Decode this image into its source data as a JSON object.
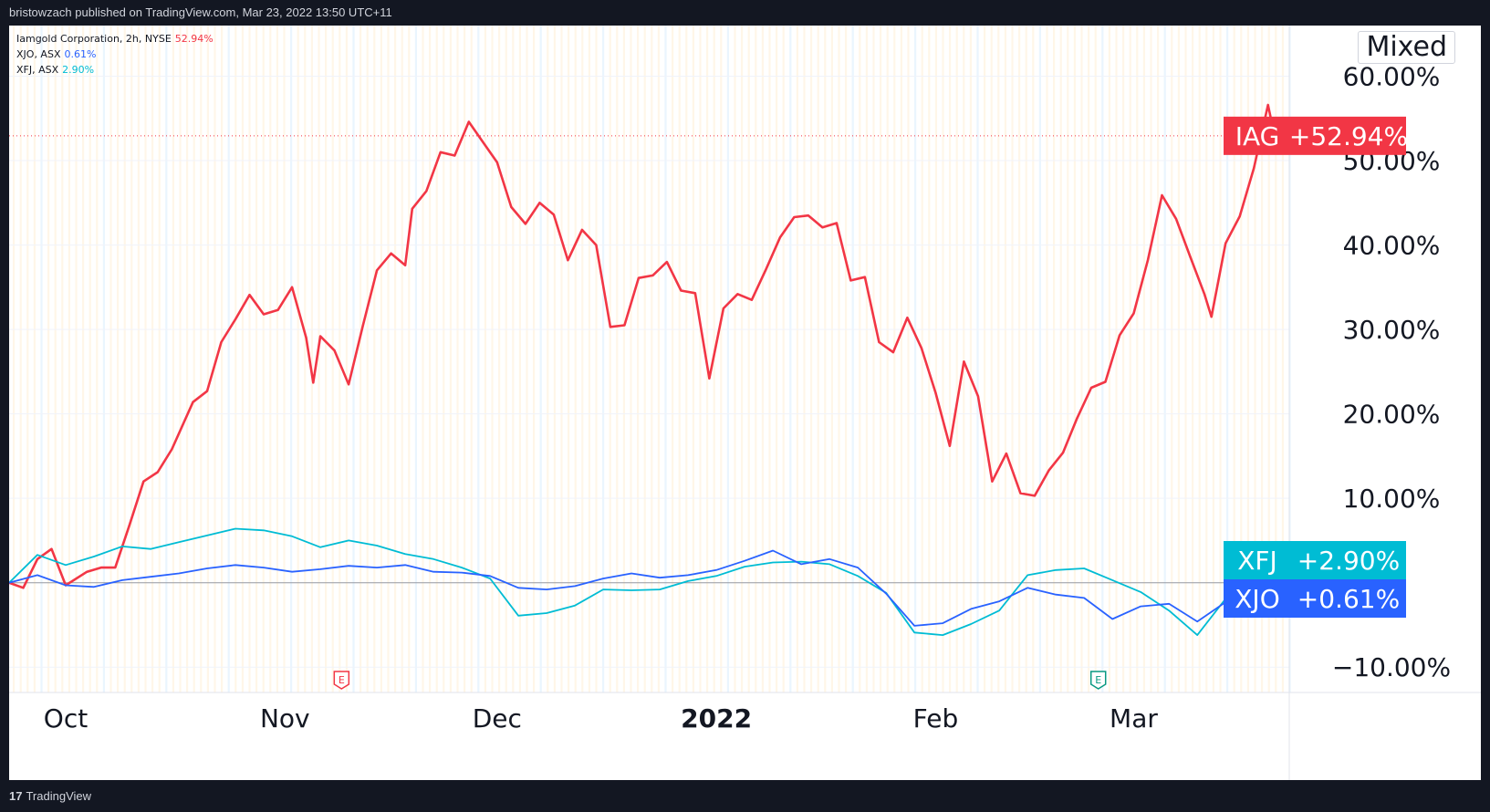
{
  "header": {
    "publish_text": "bristowzach published on TradingView.com, Mar 23, 2022 13:50 UTC+11"
  },
  "footer": {
    "brand": "TradingView",
    "logo_glyph": "17"
  },
  "legend": [
    {
      "label": "Iamgold Corporation, 2h, NYSE",
      "value": "52.94%",
      "color": "#f23645"
    },
    {
      "label": "XJO, ASX",
      "value": "0.61%",
      "color": "#2962ff"
    },
    {
      "label": "XFJ, ASX",
      "value": "2.90%",
      "color": "#00bcd4"
    }
  ],
  "mode_badge": "Mixed",
  "chart_data": {
    "type": "line",
    "y_axis_unit": "%",
    "ylim": [
      -13,
      66
    ],
    "y_ticks": [
      60,
      50,
      40,
      30,
      20,
      10,
      -10
    ],
    "y_tick_labels": [
      "60.00%",
      "50.00%",
      "40.00%",
      "30.00%",
      "20.00%",
      "10.00%",
      "−10.00%"
    ],
    "x_tick_labels": [
      {
        "label": "Oct",
        "date": "2021-10-01",
        "bold": false
      },
      {
        "label": "Nov",
        "date": "2021-11-01",
        "bold": false
      },
      {
        "label": "Dec",
        "date": "2021-12-01",
        "bold": false
      },
      {
        "label": "2022",
        "date": "2022-01-01",
        "bold": true
      },
      {
        "label": "Feb",
        "date": "2022-02-01",
        "bold": false
      },
      {
        "label": "Mar",
        "date": "2022-03-01",
        "bold": false
      }
    ],
    "xlim": [
      "2021-09-23",
      "2022-03-23"
    ],
    "earnings_markers": [
      {
        "date": "2021-11-09",
        "glyph": "E",
        "color": "#f23645"
      },
      {
        "date": "2022-02-24",
        "glyph": "E",
        "color": "#089981"
      }
    ],
    "series": [
      {
        "name": "IAG",
        "badge": "+52.94%",
        "color": "#f23645",
        "last_value": 52.94,
        "points": [
          [
            "2021-09-23",
            0
          ],
          [
            "2021-09-25",
            -0.6
          ],
          [
            "2021-09-27",
            2.8
          ],
          [
            "2021-09-29",
            4
          ],
          [
            "2021-10-01",
            -0.3
          ],
          [
            "2021-10-04",
            1.3
          ],
          [
            "2021-10-06",
            1.8
          ],
          [
            "2021-10-08",
            1.8
          ],
          [
            "2021-10-10",
            6.8
          ],
          [
            "2021-10-12",
            12
          ],
          [
            "2021-10-14",
            13.1
          ],
          [
            "2021-10-16",
            15.8
          ],
          [
            "2021-10-19",
            21.4
          ],
          [
            "2021-10-21",
            22.7
          ],
          [
            "2021-10-23",
            28.5
          ],
          [
            "2021-10-25",
            31.2
          ],
          [
            "2021-10-27",
            34.1
          ],
          [
            "2021-10-29",
            31.8
          ],
          [
            "2021-10-31",
            32.3
          ],
          [
            "2021-11-02",
            35
          ],
          [
            "2021-11-04",
            29
          ],
          [
            "2021-11-05",
            23.7
          ],
          [
            "2021-11-06",
            29.2
          ],
          [
            "2021-11-08",
            27.5
          ],
          [
            "2021-11-10",
            23.5
          ],
          [
            "2021-11-12",
            30.4
          ],
          [
            "2021-11-14",
            37
          ],
          [
            "2021-11-16",
            39
          ],
          [
            "2021-11-18",
            37.6
          ],
          [
            "2021-11-19",
            44.3
          ],
          [
            "2021-11-21",
            46.4
          ],
          [
            "2021-11-23",
            51
          ],
          [
            "2021-11-25",
            50.6
          ],
          [
            "2021-11-27",
            54.6
          ],
          [
            "2021-11-29",
            52.2
          ],
          [
            "2021-12-01",
            49.8
          ],
          [
            "2021-12-03",
            44.5
          ],
          [
            "2021-12-05",
            42.5
          ],
          [
            "2021-12-07",
            45
          ],
          [
            "2021-12-09",
            43.6
          ],
          [
            "2021-12-11",
            38.2
          ],
          [
            "2021-12-13",
            41.8
          ],
          [
            "2021-12-15",
            40
          ],
          [
            "2021-12-17",
            30.3
          ],
          [
            "2021-12-19",
            30.5
          ],
          [
            "2021-12-21",
            36.1
          ],
          [
            "2021-12-23",
            36.4
          ],
          [
            "2021-12-25",
            38
          ],
          [
            "2021-12-27",
            34.6
          ],
          [
            "2021-12-29",
            34.3
          ],
          [
            "2021-12-31",
            24.2
          ],
          [
            "2022-01-02",
            32.5
          ],
          [
            "2022-01-04",
            34.2
          ],
          [
            "2022-01-06",
            33.5
          ],
          [
            "2022-01-08",
            37.1
          ],
          [
            "2022-01-10",
            40.9
          ],
          [
            "2022-01-12",
            43.3
          ],
          [
            "2022-01-14",
            43.5
          ],
          [
            "2022-01-16",
            42.1
          ],
          [
            "2022-01-18",
            42.6
          ],
          [
            "2022-01-20",
            35.8
          ],
          [
            "2022-01-22",
            36.2
          ],
          [
            "2022-01-24",
            28.5
          ],
          [
            "2022-01-26",
            27.3
          ],
          [
            "2022-01-28",
            31.4
          ],
          [
            "2022-01-30",
            27.8
          ],
          [
            "2022-02-01",
            22.5
          ],
          [
            "2022-02-03",
            16.2
          ],
          [
            "2022-02-05",
            26.2
          ],
          [
            "2022-02-07",
            22.1
          ],
          [
            "2022-02-09",
            12
          ],
          [
            "2022-02-11",
            15.3
          ],
          [
            "2022-02-13",
            10.6
          ],
          [
            "2022-02-15",
            10.3
          ],
          [
            "2022-02-17",
            13.3
          ],
          [
            "2022-02-19",
            15.4
          ],
          [
            "2022-02-21",
            19.5
          ],
          [
            "2022-02-23",
            23.1
          ],
          [
            "2022-02-25",
            23.8
          ],
          [
            "2022-02-27",
            29.3
          ],
          [
            "2022-03-01",
            31.9
          ],
          [
            "2022-03-03",
            38.2
          ],
          [
            "2022-03-05",
            45.9
          ],
          [
            "2022-03-07",
            43.1
          ],
          [
            "2022-03-09",
            38.6
          ],
          [
            "2022-03-11",
            34.2
          ],
          [
            "2022-03-12",
            31.5
          ],
          [
            "2022-03-14",
            40.2
          ],
          [
            "2022-03-16",
            43.4
          ],
          [
            "2022-03-18",
            49.1
          ],
          [
            "2022-03-20",
            56.6
          ],
          [
            "2022-03-21",
            52.6
          ],
          [
            "2022-03-23",
            52.94
          ]
        ]
      },
      {
        "name": "XFJ",
        "badge": "+2.90%",
        "color": "#00bcd4",
        "last_value": 2.9,
        "points": [
          [
            "2021-09-23",
            0
          ],
          [
            "2021-09-27",
            3.3
          ],
          [
            "2021-10-01",
            2.1
          ],
          [
            "2021-10-05",
            3.1
          ],
          [
            "2021-10-09",
            4.3
          ],
          [
            "2021-10-13",
            4
          ],
          [
            "2021-10-17",
            4.8
          ],
          [
            "2021-10-21",
            5.6
          ],
          [
            "2021-10-25",
            6.4
          ],
          [
            "2021-10-29",
            6.2
          ],
          [
            "2021-11-02",
            5.5
          ],
          [
            "2021-11-06",
            4.2
          ],
          [
            "2021-11-10",
            5
          ],
          [
            "2021-11-14",
            4.4
          ],
          [
            "2021-11-18",
            3.4
          ],
          [
            "2021-11-22",
            2.8
          ],
          [
            "2021-11-26",
            1.8
          ],
          [
            "2021-11-30",
            0.5
          ],
          [
            "2021-12-04",
            -3.9
          ],
          [
            "2021-12-08",
            -3.6
          ],
          [
            "2021-12-12",
            -2.7
          ],
          [
            "2021-12-16",
            -0.8
          ],
          [
            "2021-12-20",
            -0.9
          ],
          [
            "2021-12-24",
            -0.8
          ],
          [
            "2021-12-28",
            0.2
          ],
          [
            "2022-01-01",
            0.8
          ],
          [
            "2022-01-05",
            1.9
          ],
          [
            "2022-01-09",
            2.4
          ],
          [
            "2022-01-13",
            2.5
          ],
          [
            "2022-01-17",
            2.2
          ],
          [
            "2022-01-21",
            0.8
          ],
          [
            "2022-01-25",
            -1.2
          ],
          [
            "2022-01-29",
            -5.9
          ],
          [
            "2022-02-02",
            -6.2
          ],
          [
            "2022-02-06",
            -4.9
          ],
          [
            "2022-02-10",
            -3.3
          ],
          [
            "2022-02-14",
            0.9
          ],
          [
            "2022-02-18",
            1.5
          ],
          [
            "2022-02-22",
            1.7
          ],
          [
            "2022-02-26",
            0.3
          ],
          [
            "2022-03-02",
            -1.1
          ],
          [
            "2022-03-06",
            -3.3
          ],
          [
            "2022-03-10",
            -6.2
          ],
          [
            "2022-03-14",
            -1.9
          ],
          [
            "2022-03-18",
            0.9
          ],
          [
            "2022-03-23",
            2.9
          ]
        ]
      },
      {
        "name": "XJO",
        "badge": "+0.61%",
        "color": "#2962ff",
        "last_value": 0.61,
        "points": [
          [
            "2021-09-23",
            0
          ],
          [
            "2021-09-27",
            0.9
          ],
          [
            "2021-10-01",
            -0.3
          ],
          [
            "2021-10-05",
            -0.5
          ],
          [
            "2021-10-09",
            0.3
          ],
          [
            "2021-10-13",
            0.7
          ],
          [
            "2021-10-17",
            1.1
          ],
          [
            "2021-10-21",
            1.7
          ],
          [
            "2021-10-25",
            2.1
          ],
          [
            "2021-10-29",
            1.8
          ],
          [
            "2021-11-02",
            1.3
          ],
          [
            "2021-11-06",
            1.6
          ],
          [
            "2021-11-10",
            2
          ],
          [
            "2021-11-14",
            1.8
          ],
          [
            "2021-11-18",
            2.1
          ],
          [
            "2021-11-22",
            1.3
          ],
          [
            "2021-11-26",
            1.2
          ],
          [
            "2021-11-30",
            0.8
          ],
          [
            "2021-12-04",
            -0.6
          ],
          [
            "2021-12-08",
            -0.8
          ],
          [
            "2021-12-12",
            -0.4
          ],
          [
            "2021-12-16",
            0.5
          ],
          [
            "2021-12-20",
            1.1
          ],
          [
            "2021-12-24",
            0.6
          ],
          [
            "2021-12-28",
            0.9
          ],
          [
            "2022-01-01",
            1.5
          ],
          [
            "2022-01-05",
            2.6
          ],
          [
            "2022-01-09",
            3.8
          ],
          [
            "2022-01-13",
            2.2
          ],
          [
            "2022-01-17",
            2.8
          ],
          [
            "2022-01-21",
            1.8
          ],
          [
            "2022-01-25",
            -1.3
          ],
          [
            "2022-01-29",
            -5.1
          ],
          [
            "2022-02-02",
            -4.8
          ],
          [
            "2022-02-06",
            -3.1
          ],
          [
            "2022-02-10",
            -2.2
          ],
          [
            "2022-02-14",
            -0.6
          ],
          [
            "2022-02-18",
            -1.4
          ],
          [
            "2022-02-22",
            -1.8
          ],
          [
            "2022-02-26",
            -4.3
          ],
          [
            "2022-03-02",
            -2.8
          ],
          [
            "2022-03-06",
            -2.5
          ],
          [
            "2022-03-10",
            -4.6
          ],
          [
            "2022-03-14",
            -2.3
          ],
          [
            "2022-03-18",
            -0.6
          ],
          [
            "2022-03-23",
            0.61
          ]
        ]
      }
    ]
  }
}
